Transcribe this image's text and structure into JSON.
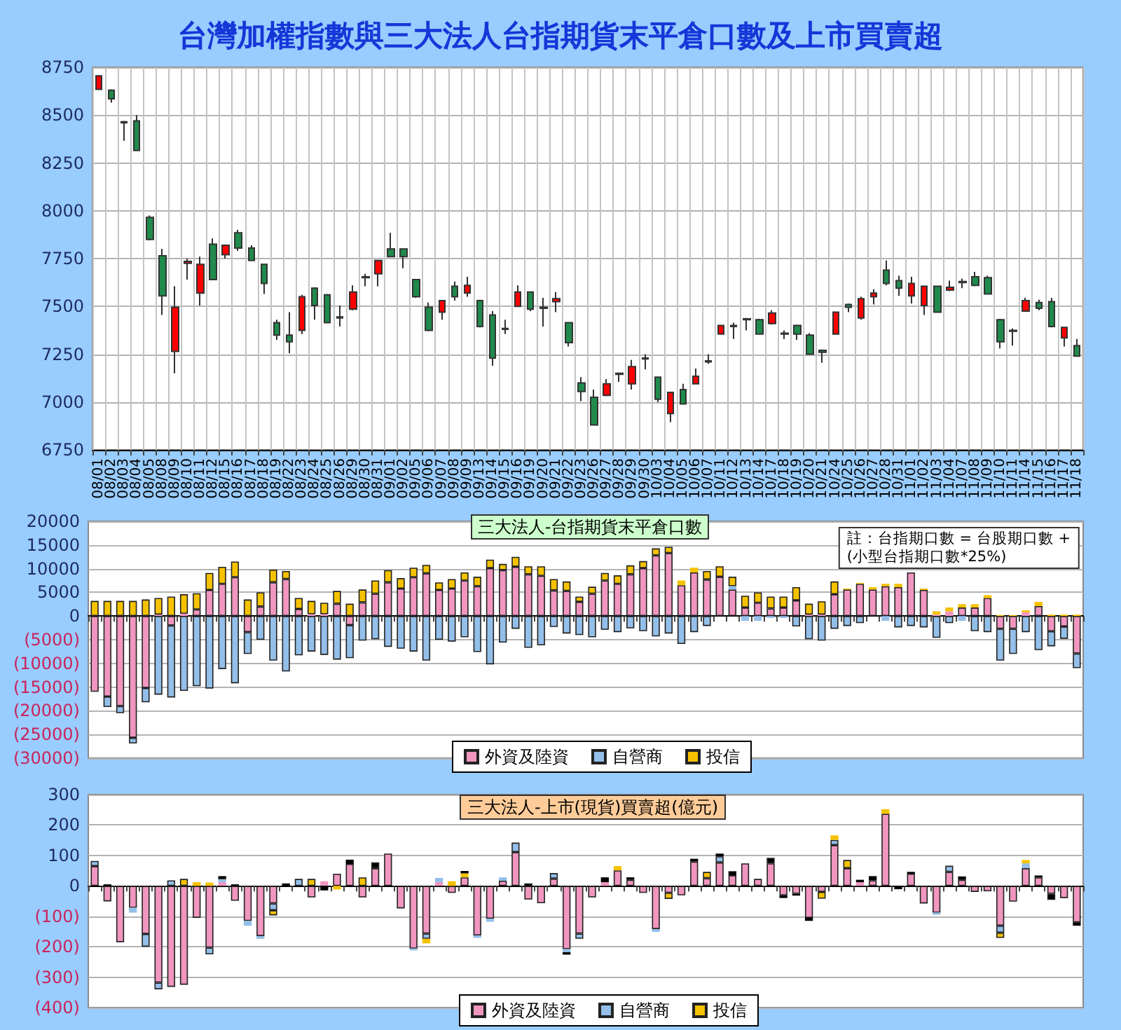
{
  "chart_data": [
    {
      "type": "candlestick",
      "title": "台灣加權指數與三大法人台指期貨末平倉口數及上市買賣超",
      "categories": [
        "08/01",
        "08/02",
        "08/03",
        "08/04",
        "08/05",
        "08/08",
        "08/09",
        "08/10",
        "08/11",
        "08/12",
        "08/15",
        "08/16",
        "08/17",
        "08/18",
        "08/19",
        "08/22",
        "08/23",
        "08/24",
        "08/25",
        "08/26",
        "08/29",
        "08/30",
        "08/31",
        "09/01",
        "09/02",
        "09/05",
        "09/06",
        "09/07",
        "09/08",
        "09/09",
        "09/13",
        "09/14",
        "09/15",
        "09/16",
        "09/19",
        "09/20",
        "09/21",
        "09/22",
        "09/23",
        "09/26",
        "09/27",
        "09/28",
        "09/29",
        "09/30",
        "10/03",
        "10/04",
        "10/05",
        "10/06",
        "10/07",
        "10/11",
        "10/12",
        "10/13",
        "10/14",
        "10/17",
        "10/18",
        "10/19",
        "10/20",
        "10/21",
        "10/24",
        "10/25",
        "10/26",
        "10/27",
        "10/28",
        "10/31",
        "11/01",
        "11/02",
        "11/03",
        "11/04",
        "11/07",
        "11/08",
        "11/09",
        "11/10",
        "11/11",
        "11/14",
        "11/15",
        "11/16",
        "11/17",
        "11/18"
      ],
      "ohlc": [
        [
          8635,
          8710,
          8635,
          8705
        ],
        [
          8630,
          8635,
          8565,
          8585
        ],
        [
          8465,
          8470,
          8365,
          8460
        ],
        [
          8470,
          8500,
          8315,
          8315
        ],
        [
          7965,
          7975,
          7845,
          7850
        ],
        [
          7765,
          7800,
          7455,
          7555
        ],
        [
          7265,
          7605,
          7150,
          7495
        ],
        [
          7725,
          7750,
          7640,
          7735
        ],
        [
          7570,
          7760,
          7505,
          7720
        ],
        [
          7825,
          7855,
          7640,
          7640
        ],
        [
          7770,
          7820,
          7750,
          7820
        ],
        [
          7885,
          7900,
          7790,
          7805
        ],
        [
          7805,
          7820,
          7740,
          7740
        ],
        [
          7720,
          7720,
          7565,
          7620
        ],
        [
          7415,
          7430,
          7325,
          7350
        ],
        [
          7350,
          7470,
          7255,
          7315
        ],
        [
          7375,
          7560,
          7355,
          7550
        ],
        [
          7595,
          7600,
          7430,
          7505
        ],
        [
          7560,
          7565,
          7415,
          7415
        ],
        [
          7440,
          7505,
          7395,
          7445
        ],
        [
          7485,
          7610,
          7480,
          7575
        ],
        [
          7655,
          7670,
          7605,
          7650
        ],
        [
          7670,
          7740,
          7605,
          7740
        ],
        [
          7800,
          7885,
          7760,
          7760
        ],
        [
          7800,
          7800,
          7700,
          7760
        ],
        [
          7640,
          7640,
          7545,
          7550
        ],
        [
          7495,
          7520,
          7370,
          7375
        ],
        [
          7470,
          7530,
          7430,
          7530
        ],
        [
          7605,
          7630,
          7530,
          7550
        ],
        [
          7570,
          7655,
          7550,
          7610
        ],
        [
          7530,
          7535,
          7390,
          7395
        ],
        [
          7455,
          7475,
          7190,
          7230
        ],
        [
          7380,
          7430,
          7355,
          7385
        ],
        [
          7500,
          7610,
          7500,
          7575
        ],
        [
          7575,
          7575,
          7475,
          7485
        ],
        [
          7490,
          7545,
          7395,
          7495
        ],
        [
          7525,
          7575,
          7470,
          7540
        ],
        [
          7415,
          7415,
          7290,
          7310
        ],
        [
          7100,
          7130,
          7005,
          7055
        ],
        [
          7025,
          7065,
          6880,
          6880
        ],
        [
          7035,
          7120,
          7030,
          7095
        ],
        [
          7150,
          7155,
          7105,
          7145
        ],
        [
          7095,
          7220,
          7065,
          7185
        ],
        [
          7230,
          7250,
          7170,
          7225
        ],
        [
          7130,
          7130,
          7000,
          7015
        ],
        [
          6940,
          7050,
          6895,
          7050
        ],
        [
          7065,
          7095,
          6990,
          6990
        ],
        [
          7095,
          7175,
          7095,
          7135
        ],
        [
          7215,
          7250,
          7200,
          7210
        ],
        [
          7355,
          7400,
          7355,
          7400
        ],
        [
          7400,
          7415,
          7330,
          7395
        ],
        [
          7430,
          7440,
          7375,
          7435
        ],
        [
          7430,
          7435,
          7355,
          7355
        ],
        [
          7410,
          7480,
          7405,
          7465
        ],
        [
          7355,
          7375,
          7330,
          7360
        ],
        [
          7400,
          7405,
          7325,
          7355
        ],
        [
          7350,
          7360,
          7250,
          7250
        ],
        [
          7270,
          7275,
          7205,
          7260
        ],
        [
          7355,
          7470,
          7355,
          7470
        ],
        [
          7510,
          7515,
          7470,
          7495
        ],
        [
          7440,
          7550,
          7430,
          7540
        ],
        [
          7550,
          7590,
          7510,
          7570
        ],
        [
          7690,
          7740,
          7610,
          7620
        ],
        [
          7635,
          7660,
          7555,
          7595
        ],
        [
          7555,
          7655,
          7515,
          7620
        ],
        [
          7505,
          7605,
          7455,
          7605
        ],
        [
          7605,
          7605,
          7470,
          7470
        ],
        [
          7585,
          7635,
          7580,
          7600
        ],
        [
          7630,
          7645,
          7595,
          7625
        ],
        [
          7655,
          7680,
          7605,
          7610
        ],
        [
          7650,
          7660,
          7565,
          7565
        ],
        [
          7430,
          7435,
          7280,
          7315
        ],
        [
          7375,
          7385,
          7295,
          7370
        ],
        [
          7475,
          7545,
          7475,
          7530
        ],
        [
          7520,
          7535,
          7480,
          7490
        ],
        [
          7525,
          7545,
          7390,
          7395
        ],
        [
          7335,
          7390,
          7290,
          7390
        ],
        [
          7295,
          7330,
          7240,
          7240
        ]
      ],
      "ylim": [
        6750,
        8750
      ],
      "yticks": [
        6750,
        7000,
        7250,
        7500,
        7750,
        8000,
        8250,
        8500,
        8750
      ],
      "grid": true
    },
    {
      "type": "bar",
      "stacked": true,
      "title": "三大法人-台指期貨末平倉口數",
      "annotations": [
        "註：台指期口數 = 台股期口數 +\n(小型台指期口數*25%)"
      ],
      "categories": [
        null,
        null,
        null,
        null,
        null,
        null,
        null,
        null,
        null,
        null,
        null,
        null,
        null,
        null,
        null,
        null,
        null,
        null,
        null,
        null,
        null,
        null,
        null,
        null,
        null,
        null,
        null,
        null,
        null,
        null,
        null,
        null,
        null,
        null,
        null,
        null,
        null,
        null,
        null,
        null,
        null,
        null,
        null,
        null,
        null,
        null,
        null,
        null,
        null,
        null,
        null,
        null,
        null,
        null,
        null,
        null,
        null,
        null,
        null,
        null,
        null,
        null,
        null,
        null,
        null,
        null,
        null,
        null,
        null,
        null,
        null,
        null,
        null,
        null,
        null,
        null,
        null,
        null
      ],
      "series": [
        {
          "name": "外資及陸資",
          "color": "#f096c0",
          "values": [
            -16000,
            -17000,
            -19000,
            -25700,
            -15200,
            300,
            -2000,
            500,
            1400,
            5500,
            6800,
            8200,
            -3400,
            2000,
            7100,
            7800,
            1500,
            400,
            400,
            2600,
            -1900,
            2900,
            4700,
            7100,
            5800,
            8200,
            9000,
            5500,
            5800,
            7500,
            6300,
            10100,
            9700,
            10400,
            8800,
            8500,
            5400,
            5300,
            3000,
            4700,
            7500,
            6800,
            8800,
            10100,
            12800,
            13300,
            6500,
            9200,
            7700,
            8300,
            5600,
            1800,
            2800,
            1600,
            1800,
            3300,
            300,
            300,
            4600,
            5600,
            6800,
            5600,
            6300,
            6100,
            9200,
            5500,
            300,
            1000,
            1800,
            1800,
            3800,
            -2700,
            -2700,
            800,
            2100,
            -3200,
            -2200,
            -7900
          ]
        },
        {
          "name": "自營商",
          "color": "#93bfe9",
          "values": [
            null,
            -2200,
            -1500,
            -1200,
            -3000,
            -16600,
            -15200,
            -15800,
            -14800,
            -15300,
            -11200,
            -14200,
            -4600,
            -5000,
            -9400,
            -11700,
            -8300,
            -7500,
            -8200,
            -9200,
            -7000,
            -5200,
            -4900,
            -6500,
            -6900,
            -7500,
            -9400,
            -5000,
            -5400,
            -4500,
            -7600,
            -10200,
            -5600,
            -2700,
            -6700,
            -6200,
            -2300,
            -3700,
            -4000,
            -4500,
            -2900,
            -3400,
            -2600,
            -3200,
            -4300,
            -3700,
            -5900,
            -3400,
            -2100,
            null,
            700,
            -1000,
            -1000,
            -400,
            -400,
            -2200,
            -4900,
            -5200,
            -2700,
            -2100,
            -1500,
            null,
            -1000,
            -2400,
            -2100,
            -2400,
            -4600,
            -1500,
            -1000,
            -3200,
            -3400,
            -6700,
            -5300,
            -3400,
            -7200,
            -3200,
            -2600,
            -3100
          ]
        },
        {
          "name": "投信",
          "color": "#f5c200",
          "values": [
            3200,
            3200,
            3200,
            3200,
            3500,
            3500,
            4100,
            4100,
            3400,
            3600,
            3600,
            3300,
            3500,
            3000,
            2700,
            1700,
            2300,
            2800,
            2400,
            2700,
            2600,
            2700,
            2800,
            2600,
            2200,
            2000,
            1800,
            1600,
            2000,
            1700,
            2000,
            1800,
            1300,
            2100,
            1700,
            2000,
            2400,
            2000,
            1100,
            1500,
            1600,
            1800,
            1900,
            1500,
            1500,
            1300,
            1000,
            1000,
            1800,
            2200,
            2000,
            2500,
            2200,
            2500,
            2300,
            2800,
            2300,
            2800,
            2700,
            200,
            200,
            500,
            500,
            700,
            null,
            300,
            700,
            800,
            700,
            700,
            600,
            200,
            200,
            400,
            900,
            300,
            300,
            300
          ]
        }
      ],
      "ylim": [
        -30000,
        20000
      ],
      "yticks": [
        {
          "value": -30000,
          "label": "(30000)"
        },
        {
          "value": -25000,
          "label": "(25000)"
        },
        {
          "value": -20000,
          "label": "(20000)"
        },
        {
          "value": -15000,
          "label": "(15000)"
        },
        {
          "value": -10000,
          "label": "(10000)"
        },
        {
          "value": -5000,
          "label": "(5000)"
        },
        0,
        5000,
        10000,
        15000,
        20000
      ],
      "grid": "y",
      "legend": "bottom"
    },
    {
      "type": "bar",
      "stacked": true,
      "title": "三大法人-上市(現貨)買賣超(億元)",
      "categories": [
        null,
        null,
        null,
        null,
        null,
        null,
        null,
        null,
        null,
        null,
        null,
        null,
        null,
        null,
        null,
        null,
        null,
        null,
        null,
        null,
        null,
        null,
        null,
        null,
        null,
        null,
        null,
        null,
        null,
        null,
        null,
        null,
        null,
        null,
        null,
        null,
        null,
        null,
        null,
        null,
        null,
        null,
        null,
        null,
        null,
        null,
        null,
        null,
        null,
        null,
        null,
        null,
        null,
        null,
        null,
        null,
        null,
        null,
        null,
        null,
        null,
        null,
        null,
        null,
        null,
        null,
        null,
        null,
        null,
        null,
        null,
        null,
        null,
        null,
        null,
        null,
        null,
        null
      ],
      "series": [
        {
          "name": "外資及陸資",
          "color": "#f096c0",
          "values": [
            65,
            -51,
            -185,
            -72,
            -158,
            -318,
            -332,
            -325,
            -105,
            -203,
            12,
            -49,
            -115,
            -165,
            -58,
            null,
            null,
            -38,
            15,
            40,
            72,
            -38,
            58,
            106,
            -74,
            -206,
            -157,
            12,
            -23,
            28,
            -163,
            -108,
            17,
            111,
            -45,
            -57,
            24,
            -208,
            -157,
            -38,
            12,
            51,
            20,
            -23,
            -142,
            -23,
            -31,
            80,
            25,
            77,
            35,
            74,
            23,
            74,
            -31,
            -26,
            -105,
            -20,
            134,
            58,
            12,
            18,
            237,
            null,
            40,
            -58,
            -88,
            46,
            20,
            -20,
            -18,
            -131,
            -52,
            58,
            28,
            -26,
            -40,
            -120
          ]
        },
        {
          "name": "自營商",
          "color": "#93bfe9",
          "values": [
            17,
            null,
            null,
            -16,
            -42,
            -22,
            18,
            null,
            null,
            -22,
            10,
            null,
            -16,
            -9,
            -22,
            null,
            23,
            null,
            null,
            null,
            null,
            null,
            null,
            null,
            null,
            -6,
            -17,
            14,
            null,
            null,
            -8,
            -10,
            11,
            31,
            null,
            null,
            18,
            -10,
            -17,
            null,
            null,
            null,
            null,
            null,
            -9,
            null,
            null,
            null,
            null,
            20,
            null,
            null,
            null,
            null,
            null,
            null,
            null,
            null,
            17,
            null,
            null,
            null,
            null,
            null,
            null,
            null,
            -7,
            20,
            null,
            null,
            null,
            -23,
            null,
            16,
            null,
            null,
            null,
            null
          ]
        },
        {
          "name": "投信",
          "color": "#f5c200",
          "values": [
            null,
            null,
            null,
            null,
            null,
            null,
            null,
            23,
            12,
            11,
            null,
            null,
            null,
            null,
            -17,
            null,
            null,
            23,
            null,
            -12,
            null,
            28,
            null,
            null,
            null,
            null,
            -15,
            null,
            15,
            13,
            null,
            null,
            null,
            null,
            null,
            null,
            null,
            null,
            null,
            null,
            null,
            14,
            null,
            null,
            null,
            -20,
            null,
            null,
            21,
            null,
            null,
            null,
            null,
            null,
            null,
            null,
            null,
            -22,
            15,
            27,
            null,
            null,
            15,
            null,
            null,
            null,
            null,
            null,
            null,
            null,
            null,
            -17,
            null,
            11,
            null,
            null,
            null,
            null
          ]
        },
        {
          "color": "#000000",
          "values": [
            null,
            5,
            null,
            null,
            null,
            null,
            null,
            null,
            null,
            null,
            10,
            5,
            null,
            null,
            null,
            8,
            null,
            null,
            -15,
            null,
            14,
            null,
            19,
            null,
            null,
            null,
            null,
            null,
            null,
            8,
            null,
            null,
            null,
            null,
            8,
            null,
            null,
            -8,
            null,
            null,
            16,
            null,
            8,
            null,
            null,
            null,
            null,
            9,
            null,
            9,
            13,
            null,
            null,
            18,
            -9,
            -6,
            -10,
            null,
            null,
            null,
            8,
            14,
            null,
            -11,
            6,
            null,
            null,
            null,
            11,
            null,
            null,
            null,
            null,
            null,
            6,
            -20,
            null,
            -11
          ]
        }
      ],
      "ylim": [
        -400,
        300
      ],
      "yticks": [
        {
          "value": -400,
          "label": "(400)"
        },
        {
          "value": -300,
          "label": "(300)"
        },
        {
          "value": -200,
          "label": "(200)"
        },
        {
          "value": -100,
          "label": "(100)"
        },
        0,
        100,
        200,
        300
      ],
      "grid": "y",
      "legend": "bottom"
    }
  ]
}
